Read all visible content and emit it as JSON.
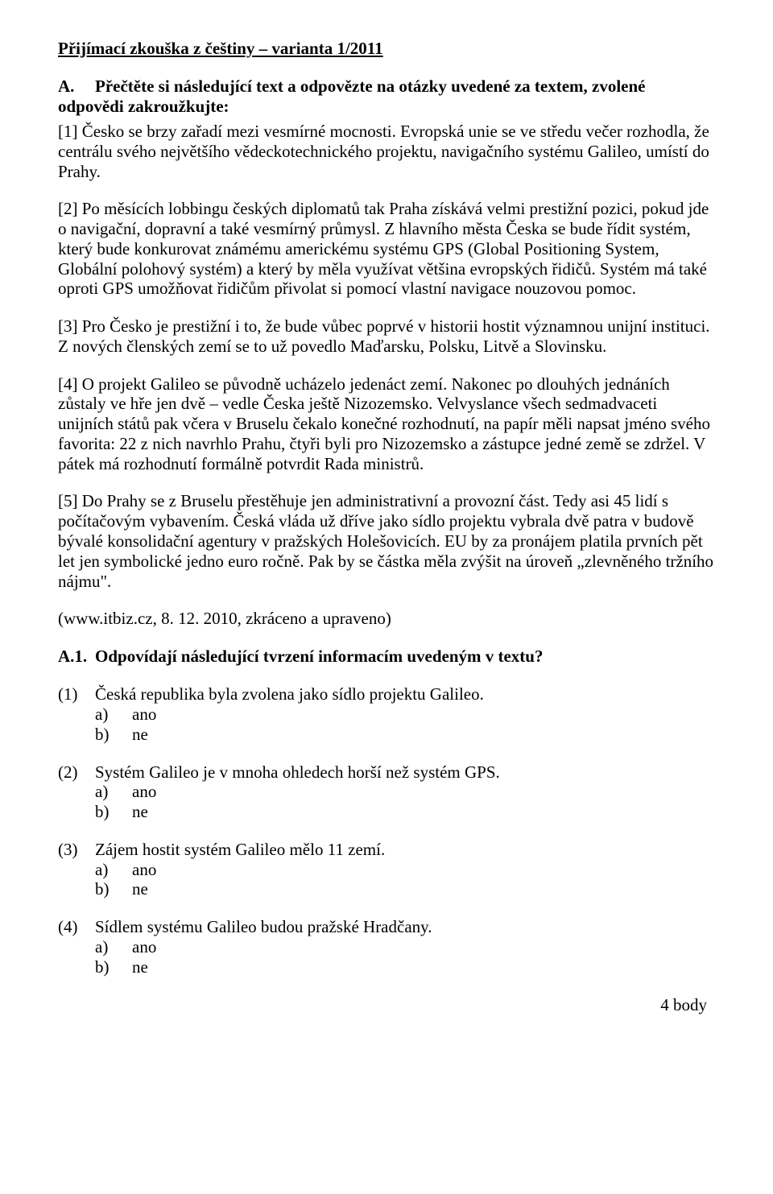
{
  "title": "Přijímací zkouška z češtiny – varianta 1/2011",
  "sectionA": {
    "letter": "A.",
    "heading": "Přečtěte si následující text a odpovězte na otázky uvedené za textem, zvolené odpovědi zakroužkujte:"
  },
  "paragraphs": {
    "p1": "[1]    Česko se brzy zařadí mezi vesmírné mocnosti. Evropská unie se ve středu večer rozhodla, že centrálu svého největšího vědeckotechnického projektu, navigačního systému Galileo, umístí do Prahy.",
    "p2": "[2]    Po měsících lobbingu českých diplomatů tak Praha získává velmi prestižní pozici, pokud jde o navigační, dopravní a také vesmírný průmysl. Z hlavního města Česka se bude řídit systém, který bude konkurovat známému americkému systému GPS (Global Positioning System, Globální polohový systém) a který by měla využívat většina evropských řidičů. Systém má také oproti GPS umožňovat řidičům přivolat si pomocí vlastní navigace nouzovou pomoc.",
    "p3": "[3]    Pro Česko je prestižní i to, že bude vůbec poprvé v historii hostit významnou unijní instituci. Z nových členských zemí se to už povedlo Maďarsku, Polsku, Litvě a Slovinsku.",
    "p4": "[4]    O projekt Galileo se původně ucházelo jedenáct zemí. Nakonec po dlouhých jednáních zůstaly ve hře jen dvě – vedle Česka ještě Nizozemsko. Velvyslance všech sedmadvaceti unijních států pak včera v Bruselu čekalo konečné rozhodnutí, na papír měli napsat jméno svého favorita: 22 z nich navrhlo Prahu, čtyři byli pro Nizozemsko a zástupce jedné země se zdržel. V pátek má rozhodnutí formálně potvrdit Rada ministrů.",
    "p5": "[5]    Do Prahy se z Bruselu přestěhuje jen administrativní a provozní část. Tedy asi 45 lidí s počítačovým vybavením. Česká vláda už dříve jako sídlo projektu vybrala dvě patra v budově bývalé konsolidační agentury v pražských Holešovicích. EU by za pronájem platila prvních pět let jen symbolické jedno euro ročně. Pak by se částka měla zvýšit na úroveň „zlevněného tržního nájmu\"."
  },
  "source": "(www.itbiz.cz, 8. 12. 2010, zkráceno a upraveno)",
  "subheadingA1": {
    "num": "A.1.",
    "text": "Odpovídají následující tvrzení informacím uvedeným v textu?"
  },
  "questions": {
    "q1": {
      "num": "(1)",
      "text": "Česká republika byla zvolena jako sídlo projektu Galileo.",
      "a": {
        "letter": "a)",
        "label": "ano"
      },
      "b": {
        "letter": "b)",
        "label": "ne"
      }
    },
    "q2": {
      "num": "(2)",
      "text": "Systém Galileo je v mnoha ohledech horší než systém GPS.",
      "a": {
        "letter": "a)",
        "label": "ano"
      },
      "b": {
        "letter": "b)",
        "label": "ne"
      }
    },
    "q3": {
      "num": "(3)",
      "text": "Zájem hostit systém Galileo mělo 11 zemí.",
      "a": {
        "letter": "a)",
        "label": "ano"
      },
      "b": {
        "letter": "b)",
        "label": "ne"
      }
    },
    "q4": {
      "num": "(4)",
      "text": "Sídlem systému Galileo budou pražské Hradčany.",
      "a": {
        "letter": "a)",
        "label": "ano"
      },
      "b": {
        "letter": "b)",
        "label": "ne"
      }
    }
  },
  "points": "4 body"
}
